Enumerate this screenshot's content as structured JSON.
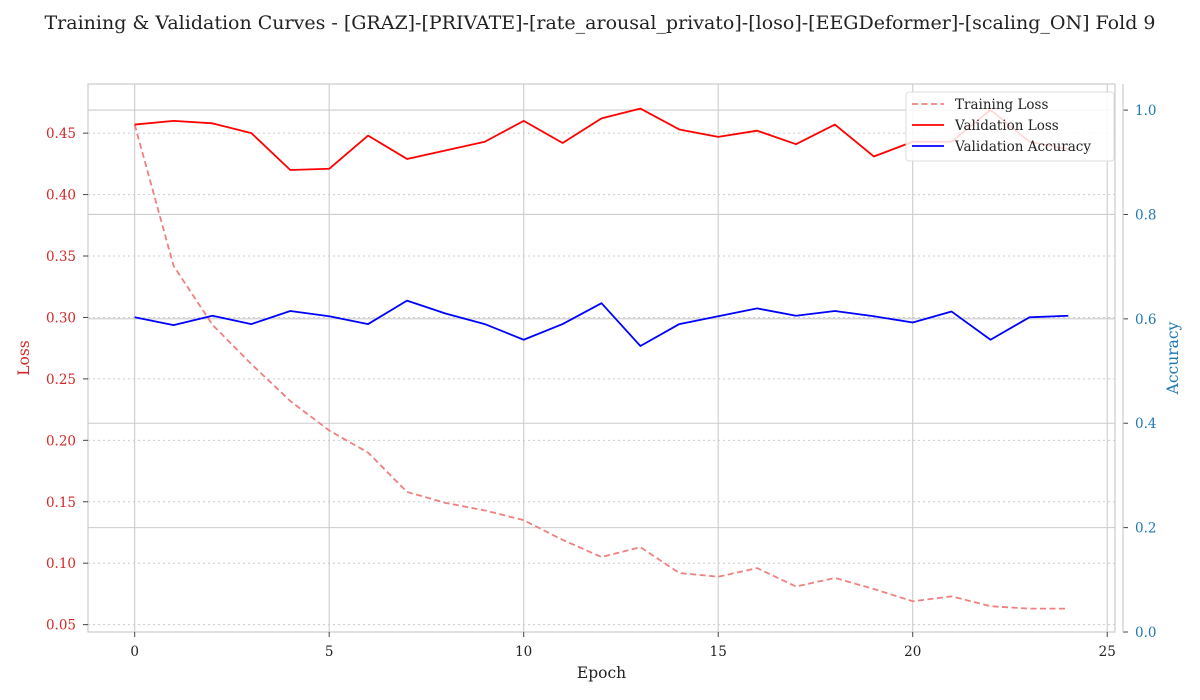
{
  "chart_data": {
    "type": "line",
    "title": "Training & Validation Curves - [GRAZ]-[PRIVATE]-[rate_arousal_privato]-[loso]-[EEGDeformer]-[scaling_ON] Fold 9",
    "xlabel": "Epoch",
    "ylabel_left": "Loss",
    "ylabel_right": "Accuracy",
    "x": [
      0,
      1,
      2,
      3,
      4,
      5,
      6,
      7,
      8,
      9,
      10,
      11,
      12,
      13,
      14,
      15,
      16,
      17,
      18,
      19,
      20,
      21,
      22,
      23,
      24
    ],
    "xlim": [
      -1.2,
      25.2
    ],
    "ylim_left": [
      0.044,
      0.49
    ],
    "ylim_right": [
      0.0,
      1.05
    ],
    "xticks": [
      0,
      5,
      10,
      15,
      20,
      25
    ],
    "yticks_left": [
      0.05,
      0.1,
      0.15,
      0.2,
      0.25,
      0.3,
      0.35,
      0.4,
      0.45
    ],
    "yticks_right": [
      0.0,
      0.2,
      0.4,
      0.6,
      0.8,
      1.0
    ],
    "grid": true,
    "legend_position": "top-right",
    "series": [
      {
        "name": "Training Loss",
        "axis": "left",
        "style": "dashed",
        "color": "#f08080",
        "values": [
          0.457,
          0.342,
          0.294,
          0.262,
          0.232,
          0.208,
          0.19,
          0.158,
          0.149,
          0.143,
          0.135,
          0.119,
          0.105,
          0.113,
          0.092,
          0.089,
          0.096,
          0.081,
          0.088,
          0.079,
          0.069,
          0.073,
          0.065,
          0.063,
          0.063
        ]
      },
      {
        "name": "Validation Loss",
        "axis": "left",
        "style": "solid",
        "color": "#ff0000",
        "values": [
          0.457,
          0.46,
          0.458,
          0.45,
          0.42,
          0.421,
          0.448,
          0.429,
          0.436,
          0.443,
          0.46,
          0.442,
          0.462,
          0.47,
          0.453,
          0.447,
          0.452,
          0.441,
          0.457,
          0.431,
          0.443,
          0.443,
          0.469,
          0.443,
          0.437
        ]
      },
      {
        "name": "Validation Accuracy",
        "axis": "right",
        "style": "solid",
        "color": "#0000ff",
        "values": [
          0.603,
          0.588,
          0.606,
          0.59,
          0.615,
          0.605,
          0.59,
          0.635,
          0.61,
          0.59,
          0.56,
          0.59,
          0.63,
          0.548,
          0.59,
          0.605,
          0.62,
          0.606,
          0.615,
          0.605,
          0.593,
          0.614,
          0.56,
          0.603,
          0.606
        ]
      }
    ],
    "colors": {
      "left_axis": "#d62728",
      "right_axis": "#1f77b4",
      "grid": "#cccccc",
      "spine": "#cccccc"
    }
  }
}
